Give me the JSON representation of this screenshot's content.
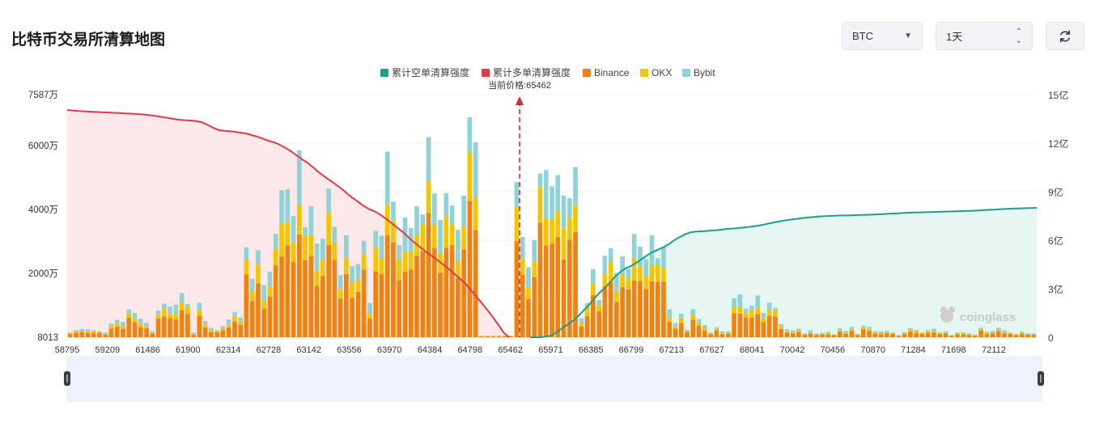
{
  "header": {
    "title": "比特币交易所清算地图",
    "symbol_value": "BTC",
    "interval_value": "1天",
    "refresh_icon": "refresh-icon"
  },
  "colors": {
    "short_line": "#1f9e89",
    "long_line": "#e03a45",
    "binance": "#f0820f",
    "okx": "#f7c500",
    "bybit": "#8fd3d8",
    "short_area": "#e6f6f2",
    "long_area": "#fde8ea",
    "slider_bg": "#eef2fd"
  },
  "chart_data": {
    "type": "bar",
    "legend": [
      "累计空单清算强度",
      "累计多单清算强度",
      "Binance",
      "OKX",
      "Bybit"
    ],
    "current_price_label": "当前价格:65462",
    "current_price": 65462,
    "x_tick_labels": [
      "58795",
      "59209",
      "61486",
      "61900",
      "62314",
      "62728",
      "63142",
      "63556",
      "63970",
      "64384",
      "64798",
      "65462",
      "65971",
      "66385",
      "66799",
      "67213",
      "67627",
      "68041",
      "70042",
      "70456",
      "70870",
      "71284",
      "71698",
      "72112"
    ],
    "y_left_ticks": [
      "8013",
      "2000万",
      "4000万",
      "6000万",
      "7587万"
    ],
    "y_left_values": [
      8013,
      20000000,
      40000000,
      60000000,
      75870000
    ],
    "y_right_ticks": [
      "0",
      "3亿",
      "6亿",
      "9亿",
      "12亿",
      "15亿"
    ],
    "y_right_values": [
      0,
      300000000,
      600000000,
      900000000,
      1200000000,
      1500000000
    ],
    "ylim_left": [
      0,
      75870000
    ],
    "ylim_right": [
      0,
      1500000000
    ],
    "stack_order": [
      "Binance",
      "OKX",
      "Bybit"
    ],
    "bar_totals_wan": [
      150,
      220,
      260,
      250,
      220,
      190,
      150,
      430,
      540,
      480,
      870,
      760,
      580,
      450,
      190,
      830,
      1050,
      960,
      1020,
      1380,
      1040,
      150,
      1080,
      500,
      290,
      220,
      350,
      560,
      790,
      620,
      2810,
      1830,
      2720,
      1630,
      2050,
      3230,
      4600,
      4630,
      3790,
      5840,
      3440,
      4100,
      2930,
      3080,
      4650,
      3450,
      1940,
      3190,
      2230,
      2290,
      3020,
      1070,
      3330,
      3180,
      5810,
      4240,
      2880,
      3740,
      3420,
      4100,
      3840,
      6260,
      4500,
      3670,
      4510,
      4120,
      3360,
      4430,
      6880,
      6100,
      50,
      50,
      50,
      50,
      50,
      50,
      4850,
      3140,
      2190,
      3040,
      5120,
      5230,
      4720,
      5070,
      4430,
      4350,
      5320,
      600,
      1070,
      2130,
      1160,
      2550,
      2790,
      2010,
      2530,
      2140,
      3230,
      2840,
      2440,
      3190,
      2470,
      2800,
      870,
      440,
      730,
      240,
      880,
      570,
      380,
      150,
      310,
      190,
      180,
      1220,
      1340,
      890,
      990,
      1310,
      760,
      1080,
      920,
      410,
      250,
      220,
      270,
      120,
      220,
      120,
      140,
      170,
      90,
      280,
      200,
      320,
      100,
      360,
      320,
      190,
      180,
      200,
      150,
      70,
      160,
      290,
      230,
      150,
      230,
      270,
      160,
      190,
      70,
      150,
      160,
      120,
      90,
      300,
      180,
      200,
      300,
      220,
      150,
      110,
      180,
      130,
      120
    ],
    "long_cumulative_yi": [
      14.05,
      14.02,
      13.99,
      13.97,
      13.95,
      13.93,
      13.91,
      13.9,
      13.88,
      13.87,
      13.85,
      13.83,
      13.81,
      13.79,
      13.76,
      13.72,
      13.67,
      13.62,
      13.56,
      13.5,
      13.45,
      13.42,
      13.4,
      13.37,
      13.3,
      13.15,
      12.97,
      12.82,
      12.77,
      12.74,
      12.7,
      12.65,
      12.6,
      12.5,
      12.4,
      12.28,
      12.15,
      12.05,
      11.9,
      11.72,
      11.5,
      11.25,
      11.0,
      10.78,
      10.5,
      10.2,
      9.94,
      9.7,
      9.45,
      9.2,
      8.9,
      8.62,
      8.38,
      8.12,
      7.92,
      7.78,
      7.58,
      7.32,
      7.05,
      6.78,
      6.51,
      6.18,
      5.88,
      5.6,
      5.32,
      5.07,
      4.82,
      4.56,
      4.28,
      3.99,
      3.69,
      3.39,
      3.0,
      2.59,
      2.17,
      1.74,
      1.29,
      0.82,
      0.3,
      0.0
    ],
    "short_cumulative_yi": [
      0.0,
      0.0,
      0.0,
      0.05,
      0.1,
      0.33,
      0.55,
      0.78,
      1.0,
      1.3,
      1.65,
      1.98,
      2.4,
      2.75,
      3.05,
      3.4,
      3.77,
      4.06,
      4.28,
      4.42,
      4.62,
      4.84,
      5.08,
      5.27,
      5.42,
      5.56,
      5.75,
      5.99,
      6.19,
      6.36,
      6.48,
      6.53,
      6.55,
      6.57,
      6.6,
      6.62,
      6.66,
      6.7,
      6.72,
      6.75,
      6.79,
      6.82,
      6.86,
      6.91,
      6.98,
      7.05,
      7.12,
      7.18,
      7.23,
      7.28,
      7.32,
      7.37,
      7.4,
      7.43,
      7.46,
      7.48,
      7.5,
      7.51,
      7.53,
      7.53,
      7.54,
      7.55,
      7.56,
      7.57,
      7.58,
      7.6,
      7.61,
      7.63,
      7.65,
      7.66,
      7.68,
      7.7,
      7.71,
      7.72,
      7.73,
      7.74,
      7.75,
      7.76,
      7.77,
      7.78,
      7.79,
      7.8,
      7.81,
      7.82,
      7.84,
      7.86,
      7.88,
      7.89,
      7.91,
      7.93,
      7.95,
      7.96,
      7.97,
      7.98,
      7.99,
      8.0
    ]
  },
  "watermark": {
    "label": "coinglass",
    "icon": "coinglass-logo-icon"
  },
  "slider": {
    "left_handle_icon": "slider-handle-icon",
    "right_handle_icon": "slider-handle-icon"
  }
}
